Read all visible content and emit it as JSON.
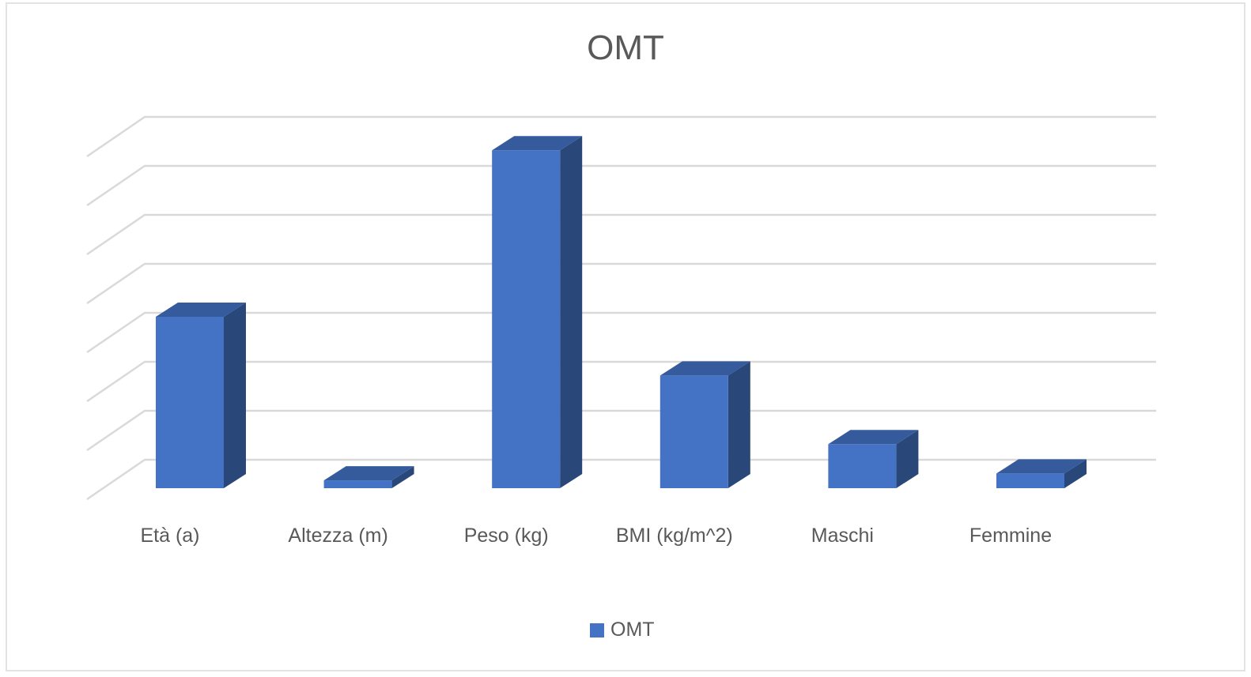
{
  "chart_data": {
    "type": "bar3d",
    "title": "OMT",
    "categories": [
      "Età (a)",
      "Altezza (m)",
      "Peso (kg)",
      "BMI (kg/m^2)",
      "Maschi",
      "Femmine"
    ],
    "series": [
      {
        "name": "OMT",
        "color": "#4472c4",
        "values": [
          35,
          1.6,
          69,
          23,
          9,
          3
        ]
      }
    ],
    "ylim": [
      0,
      70
    ],
    "yticks": [
      0,
      10,
      20,
      30,
      40,
      50,
      60,
      70
    ],
    "grid": true,
    "legend": "bottom"
  }
}
